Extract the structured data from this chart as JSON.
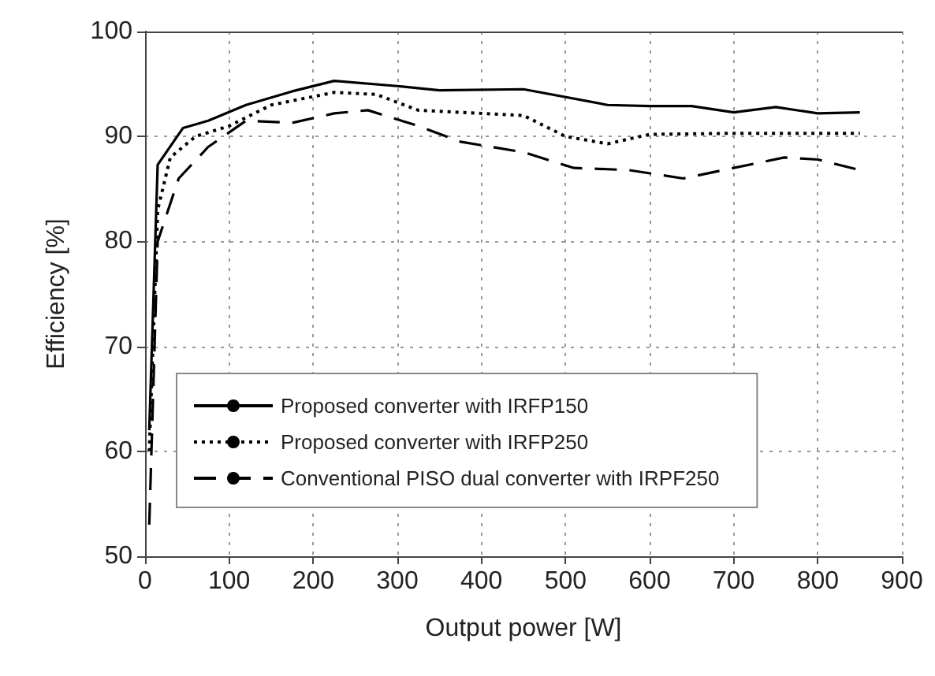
{
  "chart_data": {
    "type": "line",
    "xlabel": "Output power [W]",
    "ylabel": "Efficiency [%]",
    "xlim": [
      0,
      900
    ],
    "xticks": [
      0,
      100,
      200,
      300,
      400,
      500,
      600,
      700,
      800,
      900
    ],
    "ylim": [
      50,
      100
    ],
    "yticks": [
      50,
      60,
      70,
      80,
      90,
      100
    ],
    "grid": true,
    "legend": "bottom",
    "marker": "none",
    "series": [
      {
        "name": "Proposed converter with IRFP150",
        "color": "#000000",
        "line_style": "solid",
        "x": [
          5,
          15,
          45,
          75,
          120,
          175,
          225,
          300,
          350,
          450,
          550,
          600,
          650,
          700,
          750,
          800,
          850
        ],
        "values": [
          62,
          87.3,
          90.8,
          91.5,
          93,
          94.3,
          95.3,
          94.8,
          94.4,
          94.5,
          93,
          92.9,
          92.9,
          92.3,
          92.8,
          92.2,
          92.3
        ]
      },
      {
        "name": "Proposed converter with IRFP250",
        "color": "#000000",
        "line_style": "dotted",
        "x": [
          5,
          15,
          30,
          60,
          100,
          150,
          225,
          275,
          325,
          450,
          500,
          550,
          600,
          700,
          800,
          850
        ],
        "values": [
          60,
          83,
          88,
          90,
          91,
          93,
          94.2,
          94,
          92.5,
          92,
          90,
          89.3,
          90.2,
          90.3,
          90.3,
          90.3
        ]
      },
      {
        "name": "Conventional PISO dual converter with IRPF250",
        "color": "#000000",
        "line_style": "dashed",
        "x": [
          5,
          15,
          40,
          75,
          120,
          175,
          225,
          265,
          325,
          375,
          450,
          510,
          575,
          640,
          700,
          760,
          800,
          850
        ],
        "values": [
          53,
          80,
          86,
          89,
          91.5,
          91.3,
          92.2,
          92.5,
          91,
          89.5,
          88.5,
          87,
          86.8,
          86,
          87,
          88,
          87.8,
          86.8
        ]
      }
    ]
  }
}
